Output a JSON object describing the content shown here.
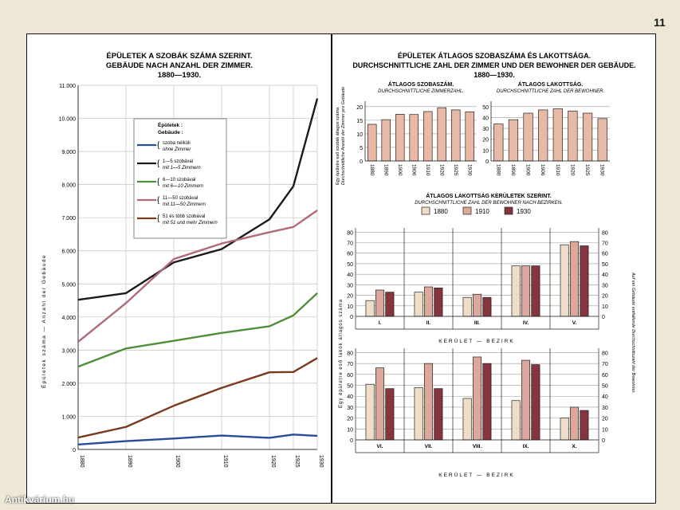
{
  "page_number": "11",
  "watermark": "Antikvárium.hu",
  "colors": {
    "c1880": "#f0ddc8",
    "c1910": "#dba89b",
    "c1930": "#86343e",
    "bar": "#e8b9a4"
  },
  "left_chart": {
    "title": [
      "ÉPÜLETEK A SZOBÁK SZÁMA SZERINT.",
      "GEBÄUDE NACH ANZAHL DER ZIMMER.",
      "1880—1930."
    ],
    "ylabel": "Épületek száma  —  Anzahl der Gebäude",
    "legend_title": [
      "Épületek :",
      "Gebäude :"
    ],
    "ytick_labels": [
      "0",
      "1.000",
      "2.000",
      "3.000",
      "4.000",
      "5.000",
      "6.000",
      "7.000",
      "8.000",
      "9.000",
      "10.000",
      "11.000"
    ]
  },
  "top_left_bar": {
    "title": "ÁTLAGOS SZOBASZÁM.",
    "subtitle": "DURCHSCHNITTLICHE ZIMMERZAHL.",
    "ylabel": [
      "Egy épületre eső szobák átlagos száma",
      "Durchschnittliche Anzahl der Zimmer pro Gebäude"
    ]
  },
  "top_right_bar": {
    "title": "ÁTLAGOS LAKOTTSÁG.",
    "subtitle": "DURCHSCHNITTLICHE ZAHL DER BEWOHNER."
  },
  "district_panel": {
    "title": "ÁTLAGOS LAKOTTSÁG KERÜLETEK SZERINT.",
    "subtitle": "DURCHSCHNITTLICHE ZAHL DER BEWOHNER NACH BEZIRKEN.",
    "left_ylabel": "Egy épületre eső lakók átlagos száma",
    "right_ylabel": "Auf ein Gebäude entfallende Durchschnittszahl der Bewohner.",
    "xlabel": "KERÜLET  —  BEZIRK"
  },
  "right_title": [
    "ÉPÜLETEK ÁTLAGOS SZOBASZÁMA ÉS LAKOTTSÁGA.",
    "DURCHSCHNITTLICHE ZAHL DER ZIMMER UND DER BEWOHNER DER GEBÄUDE.",
    "1880—1930."
  ],
  "chart_data": [
    {
      "type": "line",
      "x": [
        1880,
        1890,
        1900,
        1910,
        1920,
        1925,
        1930
      ],
      "ylim": [
        0,
        11000
      ],
      "series": [
        {
          "name": [
            "szoba nélküli",
            "ohne Zimmer"
          ],
          "color": "#2a4a9a",
          "values": [
            150,
            250,
            330,
            420,
            350,
            450,
            410
          ]
        },
        {
          "name": [
            "1—5 szobával",
            "mit 1—5 Zimmern"
          ],
          "color": "#1a1a1a",
          "values": [
            4520,
            4720,
            5650,
            6050,
            6950,
            7950,
            10600
          ]
        },
        {
          "name": [
            "6—10 szobával",
            "mit 6—10 Zimmern"
          ],
          "color": "#4f8f3c",
          "values": [
            2500,
            3050,
            3280,
            3520,
            3720,
            4050,
            4720
          ]
        },
        {
          "name": [
            "11—50 szobával",
            "mit 11—50 Zimmern"
          ],
          "color": "#b06a78",
          "values": [
            3250,
            4420,
            5750,
            6220,
            6560,
            6720,
            7220
          ]
        },
        {
          "name": [
            "51 és több szobával",
            "mit 51 und mehr Zimmern"
          ],
          "color": "#7a3a22",
          "values": [
            360,
            680,
            1320,
            1860,
            2330,
            2340,
            2760
          ]
        }
      ]
    },
    {
      "type": "bar",
      "categories": [
        "1880",
        "1890",
        "1900",
        "1906",
        "1910",
        "1920",
        "1925",
        "1930"
      ],
      "values": [
        13.5,
        15.2,
        17.2,
        17.1,
        18.2,
        19.6,
        18.8,
        18.1
      ],
      "yticks": [
        0,
        5,
        10,
        15,
        20
      ],
      "ylim": [
        0,
        22
      ]
    },
    {
      "type": "bar",
      "categories": [
        "1880",
        "1890",
        "1900",
        "1906",
        "1910",
        "1920",
        "1925",
        "1930"
      ],
      "values": [
        34,
        38,
        44,
        47,
        48,
        46,
        44,
        39
      ],
      "yticks": [
        0,
        10,
        20,
        30,
        40,
        50
      ],
      "ylim": [
        0,
        55
      ]
    },
    {
      "type": "bar",
      "legend": [
        "1880",
        "1910",
        "1930"
      ],
      "categories": [
        "I.",
        "II.",
        "III.",
        "IV.",
        "V."
      ],
      "series": [
        {
          "name": "1880",
          "values": [
            15,
            23,
            18,
            48,
            68
          ]
        },
        {
          "name": "1910",
          "values": [
            25,
            28,
            21,
            48,
            71
          ]
        },
        {
          "name": "1930",
          "values": [
            23,
            27,
            18,
            48,
            67
          ]
        }
      ],
      "yticks": [
        0,
        10,
        20,
        30,
        40,
        50,
        60,
        70,
        80
      ],
      "ylim": [
        0,
        84
      ]
    },
    {
      "type": "bar",
      "categories": [
        "VI.",
        "VII.",
        "VIII.",
        "IX.",
        "X."
      ],
      "series": [
        {
          "name": "1880",
          "values": [
            51,
            48,
            38,
            36,
            20
          ]
        },
        {
          "name": "1910",
          "values": [
            66,
            70,
            76,
            73,
            30
          ]
        },
        {
          "name": "1930",
          "values": [
            47,
            47,
            70,
            69,
            27
          ]
        }
      ],
      "yticks": [
        0,
        10,
        20,
        30,
        40,
        50,
        60,
        70,
        80
      ],
      "ylim": [
        0,
        84
      ]
    }
  ]
}
